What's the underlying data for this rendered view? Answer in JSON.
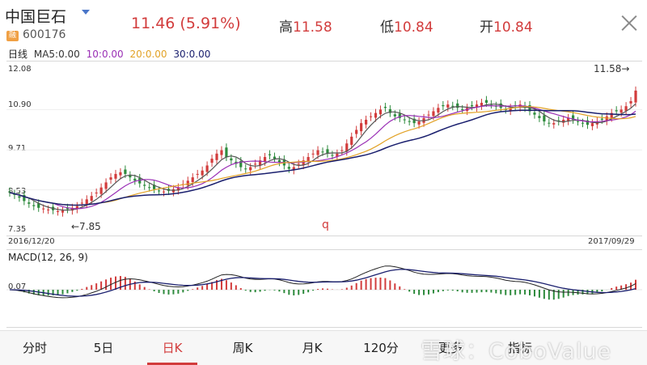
{
  "header": {
    "name": "中国巨石",
    "badge": "融",
    "code": "600176",
    "price_change": "11.46 (5.91%)",
    "high_label": "高",
    "high_value": "11.58",
    "low_label": "低",
    "low_value": "10.84",
    "open_label": "开",
    "open_value": "10.84"
  },
  "ma_legend": {
    "period": "日线",
    "ma5": "MA5:0.00",
    "ma10": "10:0.00",
    "ma20": "20:0.00",
    "ma30": "30:0.00"
  },
  "colors": {
    "up": "#d23c3c",
    "down": "#2e8b3d",
    "ma5": "#555555",
    "ma10": "#9a2fb5",
    "ma20": "#e2a226",
    "ma30": "#1a1f6e"
  },
  "price_axis": {
    "top": "12.08",
    "l2": "10.90",
    "l3": "9.71",
    "l4": "8.53",
    "bottom": "7.35"
  },
  "annotations": {
    "max_label": "11.58→",
    "min_label": "←7.85",
    "q_mark": "q"
  },
  "date_range": {
    "start": "2016/12/20",
    "end": "2017/09/29"
  },
  "macd": {
    "label": "MACD(12, 26, 9)",
    "axis_value": "0.07"
  },
  "tabs": [
    "分时",
    "5日",
    "日K",
    "周K",
    "月K",
    "120分",
    "更多",
    "指标"
  ],
  "active_tab": "日K",
  "watermark": "雪球：CoboValue",
  "chart_data": {
    "type": "candlestick",
    "x_range": [
      "2016/12/20",
      "2017/09/29"
    ],
    "ylim": [
      7.35,
      12.08
    ],
    "y_ticks": [
      12.08,
      10.9,
      9.71,
      8.53,
      7.35
    ],
    "min_marker": 7.85,
    "max_marker": 11.58,
    "close_series": [
      8.45,
      8.38,
      8.3,
      8.2,
      8.12,
      8.05,
      8.0,
      7.98,
      7.95,
      7.93,
      7.9,
      7.92,
      7.96,
      8.0,
      8.05,
      8.15,
      8.25,
      8.35,
      8.45,
      8.6,
      8.75,
      8.9,
      9.0,
      9.05,
      9.0,
      8.9,
      8.8,
      8.72,
      8.65,
      8.6,
      8.55,
      8.5,
      8.48,
      8.5,
      8.55,
      8.6,
      8.7,
      8.8,
      8.9,
      9.0,
      9.1,
      9.25,
      9.45,
      9.6,
      9.7,
      9.5,
      9.4,
      9.3,
      9.2,
      9.15,
      9.2,
      9.3,
      9.4,
      9.5,
      9.55,
      9.45,
      9.35,
      9.25,
      9.15,
      9.2,
      9.3,
      9.4,
      9.5,
      9.6,
      9.7,
      9.65,
      9.6,
      9.55,
      9.6,
      9.7,
      9.9,
      10.1,
      10.3,
      10.5,
      10.6,
      10.7,
      10.8,
      10.9,
      10.95,
      10.8,
      10.7,
      10.65,
      10.6,
      10.55,
      10.5,
      10.55,
      10.65,
      10.75,
      10.85,
      10.95,
      11.0,
      11.05,
      11.0,
      10.95,
      10.9,
      10.95,
      11.0,
      11.05,
      11.1,
      11.1,
      11.05,
      11.0,
      10.95,
      10.9,
      10.95,
      11.0,
      11.05,
      10.95,
      10.85,
      10.75,
      10.65,
      10.55,
      10.5,
      10.5,
      10.55,
      10.6,
      10.65,
      10.6,
      10.55,
      10.5,
      10.45,
      10.5,
      10.55,
      10.6,
      10.7,
      10.8,
      10.85,
      10.9,
      11.0,
      11.15,
      11.46
    ]
  }
}
